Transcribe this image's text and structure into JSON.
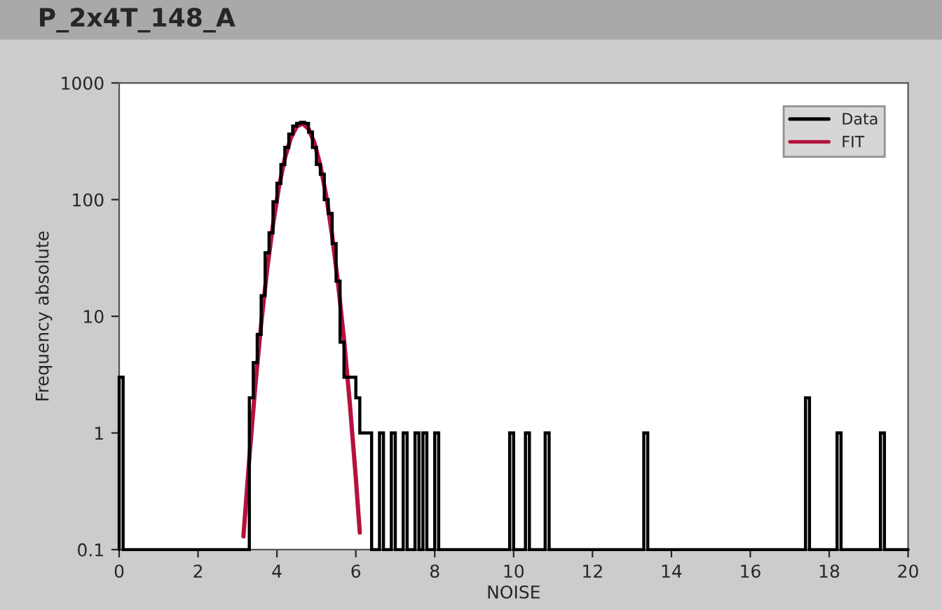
{
  "chart_data": {
    "type": "histogram",
    "title": "P_2x4T_148_A",
    "xlabel": "NOISE",
    "ylabel": "Frequency absolute",
    "xlim": [
      0,
      20
    ],
    "xticks": [
      0,
      2,
      4,
      6,
      8,
      10,
      12,
      14,
      16,
      18,
      20
    ],
    "ylim": [
      0.1,
      1000
    ],
    "yticks": [
      0.1,
      1,
      10,
      100,
      1000
    ],
    "log": "y",
    "grid": false,
    "legend": "top right",
    "series": [
      {
        "name": "Data",
        "color": "#000000",
        "bins": [
          0,
          0.1,
          3.3,
          3.4,
          3.5,
          3.6,
          3.7,
          3.8,
          3.9,
          4.0,
          4.1,
          4.2,
          4.3,
          4.4,
          4.5,
          4.6,
          4.7,
          4.8,
          4.9,
          5.0,
          5.1,
          5.2,
          5.3,
          5.4,
          5.5,
          5.6,
          5.7,
          5.8,
          5.9,
          6.0,
          6.1,
          6.2,
          6.3,
          6.4,
          6.6,
          6.7,
          6.9,
          7.0,
          7.2,
          7.3,
          7.5,
          7.6,
          7.7,
          7.8,
          8.0,
          8.1,
          9.9,
          10.0,
          10.3,
          10.4,
          10.8,
          10.9,
          13.3,
          13.4,
          17.4,
          17.5,
          18.2,
          18.3,
          19.3,
          19.4,
          20
        ],
        "values": [
          3,
          null,
          2,
          4,
          7,
          15,
          35,
          52,
          96,
          138,
          200,
          280,
          365,
          427,
          450,
          460,
          450,
          380,
          280,
          200,
          165,
          100,
          76,
          42,
          20,
          6,
          3,
          3,
          3,
          2,
          1,
          1,
          1,
          null,
          1,
          null,
          1,
          null,
          1,
          null,
          1,
          null,
          1,
          null,
          1,
          null,
          1,
          null,
          1,
          null,
          1,
          null,
          1,
          null,
          2,
          null,
          1,
          null,
          1,
          null
        ]
      },
      {
        "type": "line",
        "name": "FIT",
        "color": "#b5123e",
        "x": [
          3.15,
          3.3,
          3.45,
          3.6,
          3.75,
          3.9,
          4.05,
          4.2,
          4.35,
          4.5,
          4.65,
          4.8,
          4.95,
          5.1,
          5.25,
          5.4,
          5.55,
          5.7,
          5.85,
          6.0,
          6.1
        ],
        "values": [
          0.13,
          0.61,
          2.5,
          8.6,
          25,
          61,
          128,
          226,
          336,
          423,
          450,
          404,
          307,
          197,
          107,
          49,
          19,
          6.3,
          1.75,
          0.41,
          0.14
        ]
      }
    ]
  }
}
